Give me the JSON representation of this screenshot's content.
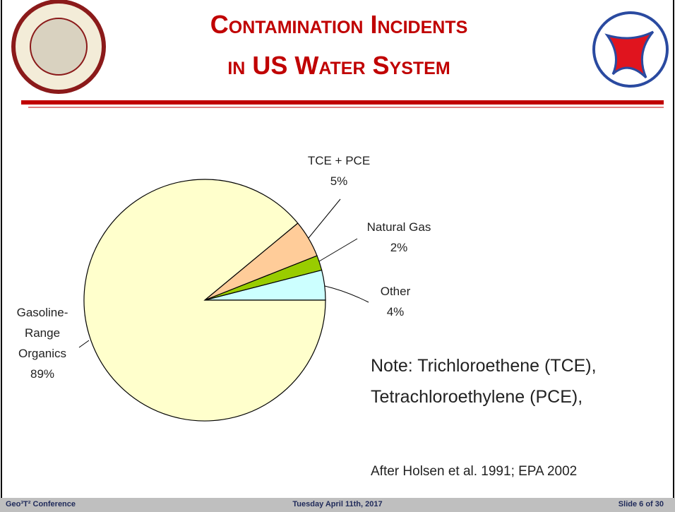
{
  "header": {
    "title_lines": [
      "Contamination Incidents",
      "in US Water System"
    ]
  },
  "chart_data": {
    "type": "pie",
    "categories": [
      "Other",
      "Natural Gas",
      "TCE + PCE",
      "Gasoline-Range Organics"
    ],
    "values": [
      4,
      2,
      5,
      89
    ],
    "value_labels": [
      "4%",
      "2%",
      "5%",
      "89%"
    ],
    "colors": [
      "#ccffff",
      "#99cc00",
      "#ffcc99",
      "#ffffcc"
    ]
  },
  "note_lines": [
    "Note: Trichloroethene (TCE),",
    "Tetrachloroethylene (PCE),"
  ],
  "source": "After Holsen et al. 1991; EPA 2002",
  "footer": {
    "left": "Geo³T² Conference",
    "center": "Tuesday April 11th, 2017",
    "right": "Slide 6 of 30"
  }
}
